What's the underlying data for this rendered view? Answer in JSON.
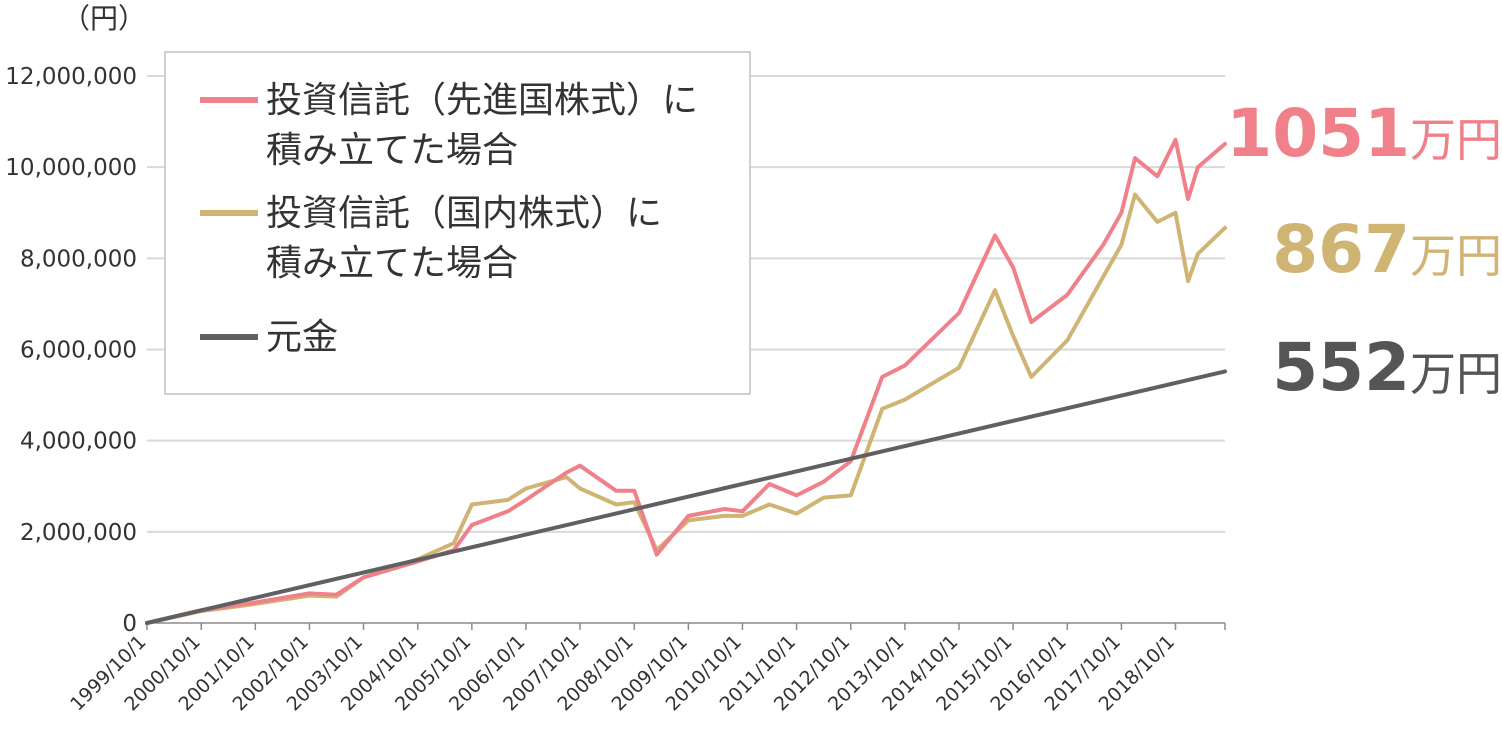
{
  "chart_data": {
    "type": "line",
    "unit_label": "（円）",
    "ylim": [
      0,
      12000000
    ],
    "yticks": [
      0,
      2000000,
      4000000,
      6000000,
      8000000,
      10000000,
      12000000
    ],
    "ytick_labels": [
      "0",
      "2,000,000",
      "4,000,000",
      "6,000,000",
      "8,000,000",
      "10,000,000",
      "12,000,000"
    ],
    "xlim": [
      "1999-10-01",
      "2019-08-31"
    ],
    "x_tick_dates": [
      "1999-10-01",
      "2000-10-01",
      "2001-10-01",
      "2002-10-01",
      "2003-10-01",
      "2004-10-01",
      "2005-10-01",
      "2006-10-01",
      "2007-10-01",
      "2008-10-01",
      "2009-10-01",
      "2010-10-01",
      "2011-10-01",
      "2012-10-01",
      "2013-10-01",
      "2014-10-01",
      "2015-10-01",
      "2016-10-01",
      "2017-10-01",
      "2018-10-01"
    ],
    "x_tick_labels": [
      "1999/10/1",
      "2000/10/1",
      "2001/10/1",
      "2002/10/1",
      "2003/10/1",
      "2004/10/1",
      "2005/10/1",
      "2006/10/1",
      "2007/10/1",
      "2008/10/1",
      "2009/10/1",
      "2010/10/1",
      "2011/10/1",
      "2012/10/1",
      "2013/10/1",
      "2014/10/1",
      "2015/10/1",
      "2016/10/1",
      "2017/10/1",
      "2018/10/1"
    ],
    "grid": true,
    "legend_position": "top-left",
    "series": [
      {
        "name": "投資信託（先進国株式）に\n積み立てた場合",
        "color": "#f0818a",
        "x": [
          "1999-10-01",
          "2000-10-01",
          "2001-10-01",
          "2002-10-01",
          "2003-04-01",
          "2003-10-01",
          "2004-10-01",
          "2005-06-01",
          "2005-10-01",
          "2006-06-01",
          "2006-10-01",
          "2007-07-01",
          "2007-10-01",
          "2008-06-01",
          "2008-10-01",
          "2009-03-01",
          "2009-10-01",
          "2010-06-01",
          "2010-10-01",
          "2011-04-01",
          "2011-10-01",
          "2012-04-01",
          "2012-10-01",
          "2013-05-01",
          "2013-10-01",
          "2014-10-01",
          "2015-06-01",
          "2015-10-01",
          "2016-02-01",
          "2016-10-01",
          "2017-06-01",
          "2017-10-01",
          "2018-01-01",
          "2018-06-01",
          "2018-10-01",
          "2018-12-25",
          "2019-03-01",
          "2019-08-31"
        ],
        "values": [
          0,
          280000,
          450000,
          650000,
          620000,
          1000000,
          1350000,
          1600000,
          2150000,
          2450000,
          2700000,
          3300000,
          3450000,
          2900000,
          2900000,
          1500000,
          2350000,
          2500000,
          2450000,
          3050000,
          2800000,
          3100000,
          3550000,
          5400000,
          5650000,
          6800000,
          8500000,
          7800000,
          6600000,
          7200000,
          8300000,
          9000000,
          10200000,
          9800000,
          10600000,
          9300000,
          10000000,
          10510000
        ]
      },
      {
        "name": "投資信託（国内株式）に\n積み立てた場合",
        "color": "#cfb474",
        "x": [
          "1999-10-01",
          "2000-10-01",
          "2001-10-01",
          "2002-10-01",
          "2003-04-01",
          "2003-10-01",
          "2004-10-01",
          "2005-06-01",
          "2005-10-01",
          "2006-06-01",
          "2006-10-01",
          "2007-07-01",
          "2007-10-01",
          "2008-06-01",
          "2008-10-01",
          "2009-03-01",
          "2009-10-01",
          "2010-06-01",
          "2010-10-01",
          "2011-04-01",
          "2011-10-01",
          "2012-04-01",
          "2012-10-01",
          "2013-05-01",
          "2013-10-01",
          "2014-10-01",
          "2015-06-01",
          "2015-10-01",
          "2016-02-01",
          "2016-10-01",
          "2017-06-01",
          "2017-10-01",
          "2018-01-01",
          "2018-06-01",
          "2018-10-01",
          "2018-12-25",
          "2019-03-01",
          "2019-08-31"
        ],
        "values": [
          0,
          260000,
          420000,
          600000,
          580000,
          1000000,
          1400000,
          1750000,
          2600000,
          2700000,
          2950000,
          3200000,
          2950000,
          2600000,
          2650000,
          1600000,
          2250000,
          2350000,
          2350000,
          2600000,
          2400000,
          2750000,
          2800000,
          4700000,
          4900000,
          5600000,
          7300000,
          6300000,
          5400000,
          6200000,
          7600000,
          8300000,
          9400000,
          8800000,
          9000000,
          7500000,
          8100000,
          8670000
        ]
      },
      {
        "name": "元金",
        "color": "#606060",
        "x": [
          "1999-10-01",
          "2019-08-31"
        ],
        "values": [
          0,
          5520000
        ]
      }
    ],
    "end_labels": [
      {
        "value": "1051",
        "unit": "万円",
        "color": "#f0818a"
      },
      {
        "value": "867",
        "unit": "万円",
        "color": "#cfb474"
      },
      {
        "value": "552",
        "unit": "万円",
        "color": "#555555"
      }
    ]
  }
}
